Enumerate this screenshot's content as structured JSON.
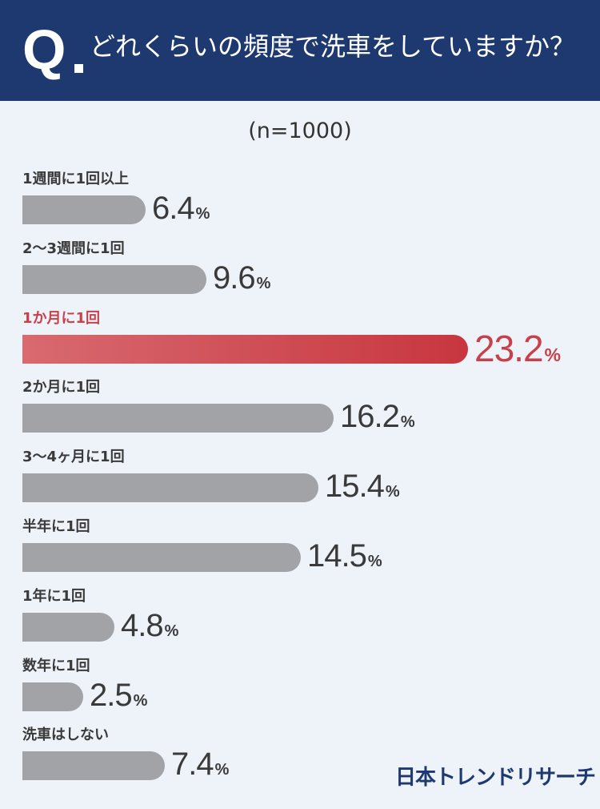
{
  "header": {
    "q_letter": "Q",
    "question": "どれくらいの頻度で洗車をしていますか？"
  },
  "sample_size": "(n=1000)",
  "chart_data": {
    "type": "bar",
    "orientation": "horizontal",
    "categories": [
      "1週間に1回以上",
      "2〜3週間に1回",
      "1か月に1回",
      "2か月に1回",
      "3〜4ヶ月に1回",
      "半年に1回",
      "1年に1回",
      "数年に1回",
      "洗車はしない"
    ],
    "values": [
      6.4,
      9.6,
      23.2,
      16.2,
      15.4,
      14.5,
      4.8,
      2.5,
      7.4
    ],
    "value_labels": [
      "6.4",
      "9.6",
      "23.2",
      "16.2",
      "15.4",
      "14.5",
      "4.8",
      "2.5",
      "7.4"
    ],
    "unit": "%",
    "highlight_index": 2,
    "colors": {
      "bar": "#a1a3a6",
      "highlight_start": "#d86a70",
      "highlight_end": "#c8363f",
      "highlight_text": "#c8414a"
    }
  },
  "logo": "日本トレンドリサーチ"
}
